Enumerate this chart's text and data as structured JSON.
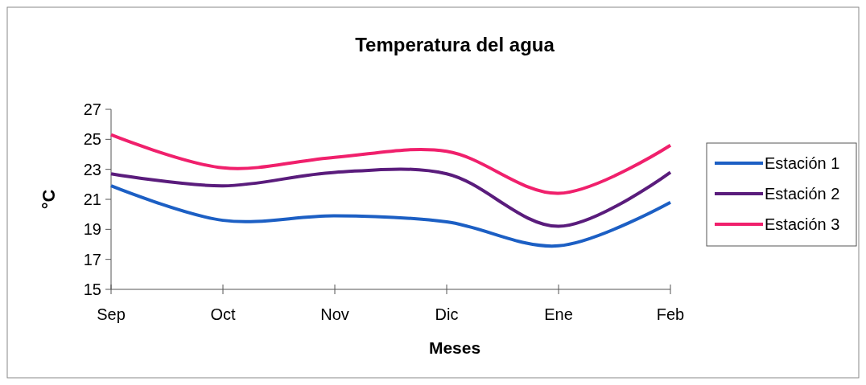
{
  "chart_data": {
    "type": "line",
    "title": "Temperatura del agua",
    "xlabel": "Meses",
    "ylabel": "°C",
    "categories": [
      "Sep",
      "Oct",
      "Nov",
      "Dic",
      "Ene",
      "Feb"
    ],
    "series": [
      {
        "name": "Estación 1",
        "color": "#1c5fc4",
        "values": [
          21.9,
          19.6,
          19.9,
          19.5,
          17.9,
          20.8
        ]
      },
      {
        "name": "Estación 2",
        "color": "#5a1c7c",
        "values": [
          22.7,
          21.9,
          22.8,
          22.7,
          19.2,
          22.8
        ]
      },
      {
        "name": "Estación 3",
        "color": "#f0206c",
        "values": [
          25.3,
          23.1,
          23.8,
          24.2,
          21.4,
          24.6
        ]
      }
    ],
    "ylim": [
      15,
      27
    ],
    "yticks": [
      15,
      17,
      19,
      21,
      23,
      25,
      27
    ],
    "grid": false,
    "legend": "right",
    "marker": "none",
    "line_style": "solid"
  }
}
